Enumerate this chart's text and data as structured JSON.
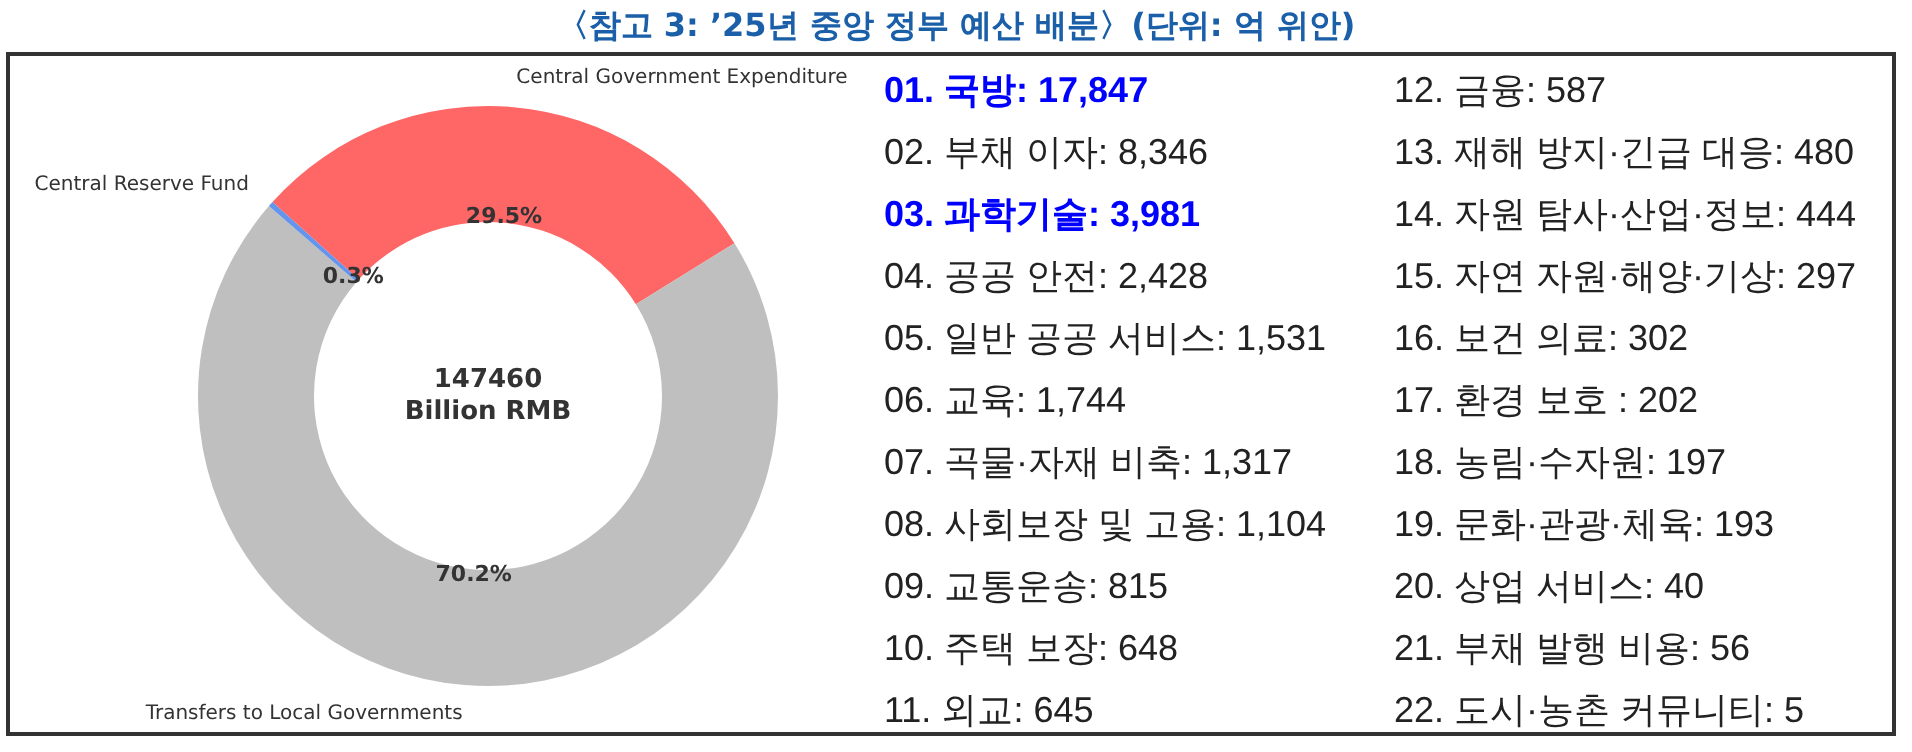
{
  "chart_data": [
    {
      "type": "donut",
      "title": "〈참고 3: ’25년 중앙 정부 예산 배분〉(단위: 억 위안)",
      "categories": [
        "Central Government Expenditure",
        "Transfers to Local Governments",
        "Central Reserve Fund"
      ],
      "values": [
        29.5,
        70.2,
        0.3
      ],
      "colors": [
        "#ff6666",
        "#bfbfbf",
        "#6495ed"
      ],
      "value_labels": [
        "29.5%",
        "70.2%",
        "0.3%"
      ],
      "annotations": [
        "147460",
        "Billion RMB"
      ]
    },
    {
      "type": "other",
      "annotations": [
        "01. 국방: 17,847",
        "02. 부채 이자: 8,346",
        "03. 과학기술: 3,981",
        "04. 공공 안전: 2,428",
        "05. 일반 공공 서비스: 1,531",
        "06. 교육: 1,744",
        "07. 곡물·자재 비축: 1,317",
        "08. 사회보장 및 고용: 1,104",
        "09. 교통운송: 815",
        "10. 주택 보장: 648",
        "11. 외교: 645",
        "12. 금융: 587",
        "13. 재해 방지·긴급 대응: 480",
        "14. 자원 탐사·산업·정보: 444",
        "15. 자연 자원·해양·기상: 297",
        "16. 보건 의료: 302",
        "17. 환경 보호 : 202",
        "18. 농림·수자원: 197",
        "19. 문화·관광·체육: 193",
        "20. 상업 서비스: 40",
        "21. 부채 발행 비용: 56",
        "22. 도시·농촌 커뮤니티: 5"
      ],
      "colors": [
        "#0000ff",
        null,
        "#0000ff",
        null,
        null,
        null,
        null,
        null,
        null,
        null,
        null,
        null,
        null,
        null,
        null,
        null,
        null,
        null,
        null,
        null,
        null,
        null
      ]
    }
  ]
}
